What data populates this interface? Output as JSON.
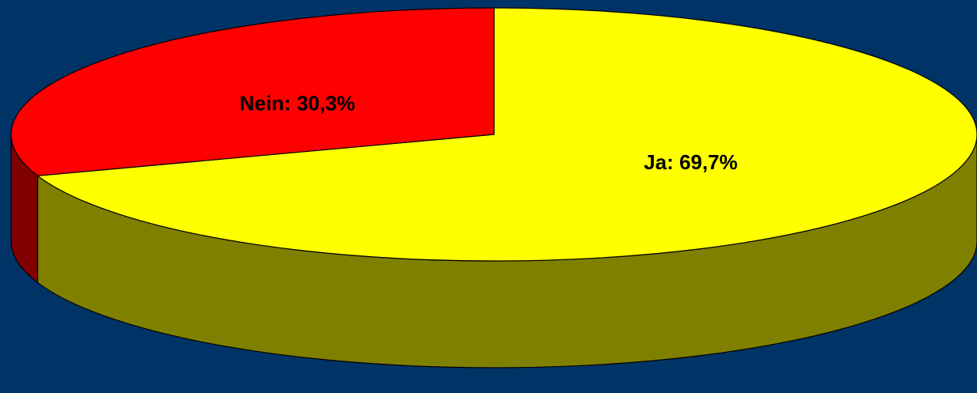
{
  "chart_data": {
    "type": "pie3d",
    "values": [
      69.7,
      30.3
    ],
    "value_labels": [
      "Ja: 69,7%",
      "Nein: 30,3%"
    ],
    "colors": [
      "#ffff00",
      "#ff0000"
    ],
    "side_colors": [
      "#808000",
      "#800000"
    ],
    "start_angle": -90,
    "direction": "clockwise",
    "background": "#003366"
  }
}
